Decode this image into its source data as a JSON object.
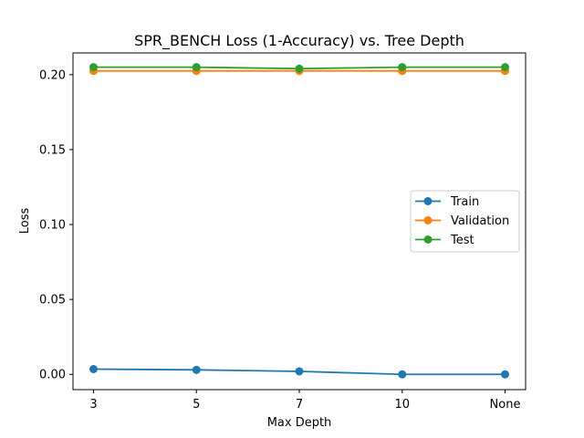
{
  "chart_data": {
    "type": "line",
    "title": "SPR_BENCH Loss (1-Accuracy) vs. Tree Depth",
    "xlabel": "Max Depth",
    "ylabel": "Loss",
    "categories": [
      "3",
      "5",
      "7",
      "10",
      "None"
    ],
    "ylim": [
      -0.0102,
      0.2145
    ],
    "yticks": [
      0.0,
      0.05,
      0.1,
      0.15,
      0.2
    ],
    "ytick_labels": [
      "0.00",
      "0.05",
      "0.10",
      "0.15",
      "0.20"
    ],
    "grid": false,
    "legend_position": "center-right",
    "series": [
      {
        "name": "Train",
        "color": "#1f77b4",
        "values": [
          0.0035,
          0.003,
          0.002,
          0.0,
          0.0
        ]
      },
      {
        "name": "Validation",
        "color": "#ff7f0e",
        "values": [
          0.2025,
          0.2025,
          0.2025,
          0.2025,
          0.2025
        ]
      },
      {
        "name": "Test",
        "color": "#2ca02c",
        "values": [
          0.205,
          0.205,
          0.204,
          0.205,
          0.205
        ]
      }
    ]
  }
}
